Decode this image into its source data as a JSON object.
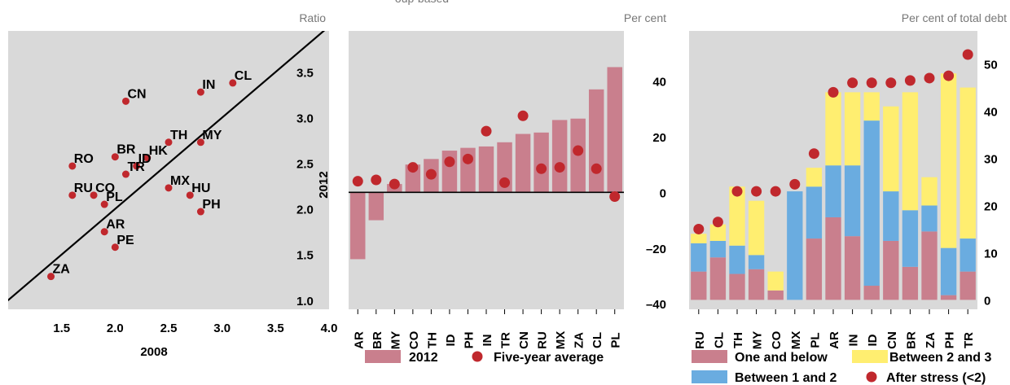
{
  "colors": {
    "panel_bg": "#d9d9d9",
    "bar_2012": "#c97f8d",
    "dot": "#c0282d",
    "one_below": "#c97f8d",
    "one_two": "#6aace0",
    "two_three": "#ffee70",
    "axis": "#000000"
  },
  "header_fragment": "oup-based",
  "chart_data": [
    {
      "type": "scatter",
      "unit": "Ratio",
      "xlabel": "2008",
      "ylabel": "2012",
      "xlim": [
        1.0,
        4.0
      ],
      "ylim": [
        0.9,
        3.95
      ],
      "x_ticks": [
        "1.5",
        "2.0",
        "2.5",
        "3.0",
        "3.5",
        "4.0"
      ],
      "y_ticks": [
        "1.0",
        "1.5",
        "2.0",
        "2.5",
        "3.0",
        "3.5"
      ],
      "reference_line": "45-degree",
      "points": [
        {
          "label": "CL",
          "x": 3.1,
          "y": 3.38
        },
        {
          "label": "IN",
          "x": 2.8,
          "y": 3.28
        },
        {
          "label": "CN",
          "x": 2.1,
          "y": 3.18
        },
        {
          "label": "TH",
          "x": 2.5,
          "y": 2.73
        },
        {
          "label": "MY",
          "x": 2.8,
          "y": 2.73
        },
        {
          "label": "BR",
          "x": 2.0,
          "y": 2.57
        },
        {
          "label": "HK",
          "x": 2.3,
          "y": 2.56
        },
        {
          "label": "RO",
          "x": 1.6,
          "y": 2.47
        },
        {
          "label": "ID",
          "x": 2.2,
          "y": 2.47
        },
        {
          "label": "TR",
          "x": 2.1,
          "y": 2.38
        },
        {
          "label": "MX",
          "x": 2.5,
          "y": 2.23
        },
        {
          "label": "RU",
          "x": 1.6,
          "y": 2.15
        },
        {
          "label": "CO",
          "x": 1.8,
          "y": 2.15
        },
        {
          "label": "HU",
          "x": 2.7,
          "y": 2.15
        },
        {
          "label": "PL",
          "x": 1.9,
          "y": 2.05
        },
        {
          "label": "PH",
          "x": 2.8,
          "y": 1.97
        },
        {
          "label": "AR",
          "x": 1.9,
          "y": 1.75
        },
        {
          "label": "PE",
          "x": 2.0,
          "y": 1.58
        },
        {
          "label": "ZA",
          "x": 1.4,
          "y": 1.26
        }
      ]
    },
    {
      "type": "bar",
      "unit": "Per cent",
      "categories": [
        "AR",
        "BR",
        "MY",
        "CO",
        "TH",
        "ID",
        "PH",
        "IN",
        "TR",
        "CN",
        "RU",
        "MX",
        "ZA",
        "CL",
        "PL"
      ],
      "ylim": [
        -42,
        58
      ],
      "y_ticks": [
        "40",
        "20",
        "0",
        "–20",
        "–40"
      ],
      "y_tick_values": [
        40,
        20,
        0,
        -20,
        -40
      ],
      "series": [
        {
          "name": "2012",
          "kind": "bar",
          "values": [
            -24,
            -10,
            3,
            10,
            12,
            15,
            16,
            16.5,
            18,
            21,
            21.5,
            26,
            26.5,
            37,
            45
          ]
        },
        {
          "name": "Five-year average",
          "kind": "dot",
          "values": [
            4,
            4.5,
            3,
            9,
            6.5,
            11,
            12,
            22,
            3.5,
            27.5,
            8.5,
            9,
            15,
            8.5,
            -1.5
          ]
        }
      ]
    },
    {
      "type": "stacked-bar",
      "unit": "Per cent of total debt",
      "categories": [
        "RU",
        "CL",
        "TH",
        "MY",
        "CO",
        "MX",
        "PL",
        "AR",
        "IN",
        "ID",
        "CN",
        "BR",
        "ZA",
        "PH",
        "TR"
      ],
      "ylim": [
        -2,
        57
      ],
      "y_ticks": [
        "50",
        "40",
        "30",
        "20",
        "10",
        "0"
      ],
      "y_tick_values": [
        50,
        40,
        30,
        20,
        10,
        0
      ],
      "series": [
        {
          "name": "One and below",
          "values": [
            6,
            9,
            5.5,
            6.5,
            2,
            0,
            13,
            17.5,
            13.5,
            3,
            12.5,
            7,
            14.5,
            1,
            6
          ]
        },
        {
          "name": "Between 1 and 2",
          "values": [
            6,
            3.5,
            6,
            3,
            0,
            23,
            11,
            11,
            15,
            35,
            10.5,
            12,
            5.5,
            10,
            7
          ]
        },
        {
          "name": "Between 2 and 3",
          "values": [
            2,
            3.5,
            12.5,
            11.5,
            4,
            0,
            4,
            15.5,
            15.5,
            6,
            18,
            25,
            6,
            37,
            32
          ]
        },
        {
          "name": "After stress (<2)",
          "kind": "dot",
          "values": [
            15,
            16.5,
            23,
            23,
            23,
            24.5,
            31,
            44,
            46,
            46,
            46,
            46.5,
            47,
            47.5,
            52
          ]
        }
      ]
    }
  ]
}
